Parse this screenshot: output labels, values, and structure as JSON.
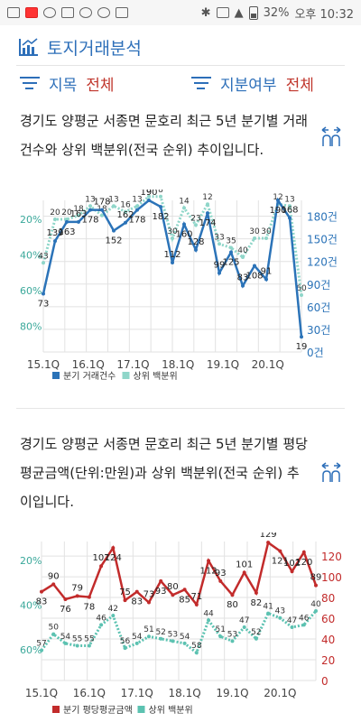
{
  "status_bar": {
    "battery": "32%",
    "time": "오후 10:32"
  },
  "header": {
    "title": "토지거래분석"
  },
  "filters": [
    {
      "label": "지목",
      "value": "전체"
    },
    {
      "label": "지분여부",
      "value": "전체"
    }
  ],
  "section1": {
    "description": "경기도 양평군 서종면 문호리 최근 5년 분기별 거래건수와 상위 백분위(전국 순위) 추이입니다."
  },
  "section2": {
    "description": "경기도 양평군 서종면 문호리 최근 5년 분기별 평당 평균금액(단위:만원)과 상위 백분위(전국 순위) 추이입니다."
  },
  "colors": {
    "blue": "#2b73b8",
    "teal": "#3aa89a",
    "red": "#c22b2b",
    "accent": "#2d6fb9",
    "filter_value": "#c0362c"
  },
  "chart_data": [
    {
      "type": "line",
      "x_tick_labels": [
        "15.1Q",
        "16.1Q",
        "17.1Q",
        "18.1Q",
        "19.1Q",
        "20.1Q"
      ],
      "series": [
        {
          "name": "분기 거래건수",
          "axis": "right",
          "unit": "건",
          "values": [
            73,
            139,
            163,
            163,
            178,
            178,
            152,
            162,
            178,
            190,
            182,
            112,
            160,
            128,
            174,
            99,
            125,
            83,
            108,
            91,
            190,
            168,
            19
          ]
        },
        {
          "name": "상위 백분위",
          "axis": "left",
          "unit": "%",
          "values": [
            43,
            20,
            20,
            18,
            13,
            18,
            13,
            16,
            13,
            8,
            8,
            30,
            14,
            23,
            12,
            33,
            35,
            40,
            30,
            30,
            12,
            13,
            60
          ]
        }
      ],
      "right_axis": {
        "ticks": [
          "0건",
          "30건",
          "60건",
          "90건",
          "120건",
          "150건",
          "180건"
        ],
        "range": [
          0,
          190
        ]
      },
      "left_axis": {
        "ticks": [
          "20%",
          "40%",
          "60%",
          "80%"
        ],
        "range": [
          10,
          90
        ],
        "reversed": true
      }
    },
    {
      "type": "line",
      "x_tick_labels": [
        "15.1Q",
        "16.1Q",
        "17.1Q",
        "18.1Q",
        "19.1Q",
        "20.1Q"
      ],
      "series": [
        {
          "name": "분기 평당평균금액",
          "axis": "right",
          "values": [
            83,
            90,
            76,
            79,
            78,
            107,
            124,
            75,
            83,
            73,
            93,
            80,
            85,
            71,
            112,
            93,
            80,
            101,
            82,
            129,
            121,
            102,
            120,
            89
          ]
        },
        {
          "name": "상위 백분위",
          "axis": "left",
          "unit": "%",
          "values": [
            57,
            50,
            54,
            55,
            55,
            46,
            42,
            56,
            54,
            51,
            52,
            53,
            54,
            58,
            44,
            51,
            53,
            47,
            52,
            41,
            43,
            47,
            46,
            40
          ]
        }
      ],
      "right_axis": {
        "ticks": [
          "0",
          "20",
          "40",
          "60",
          "80",
          "100",
          "120"
        ],
        "range": [
          0,
          130
        ]
      },
      "left_axis": {
        "ticks": [
          "20%",
          "40%",
          "60%"
        ],
        "range": [
          10,
          70
        ],
        "reversed": true
      }
    }
  ]
}
